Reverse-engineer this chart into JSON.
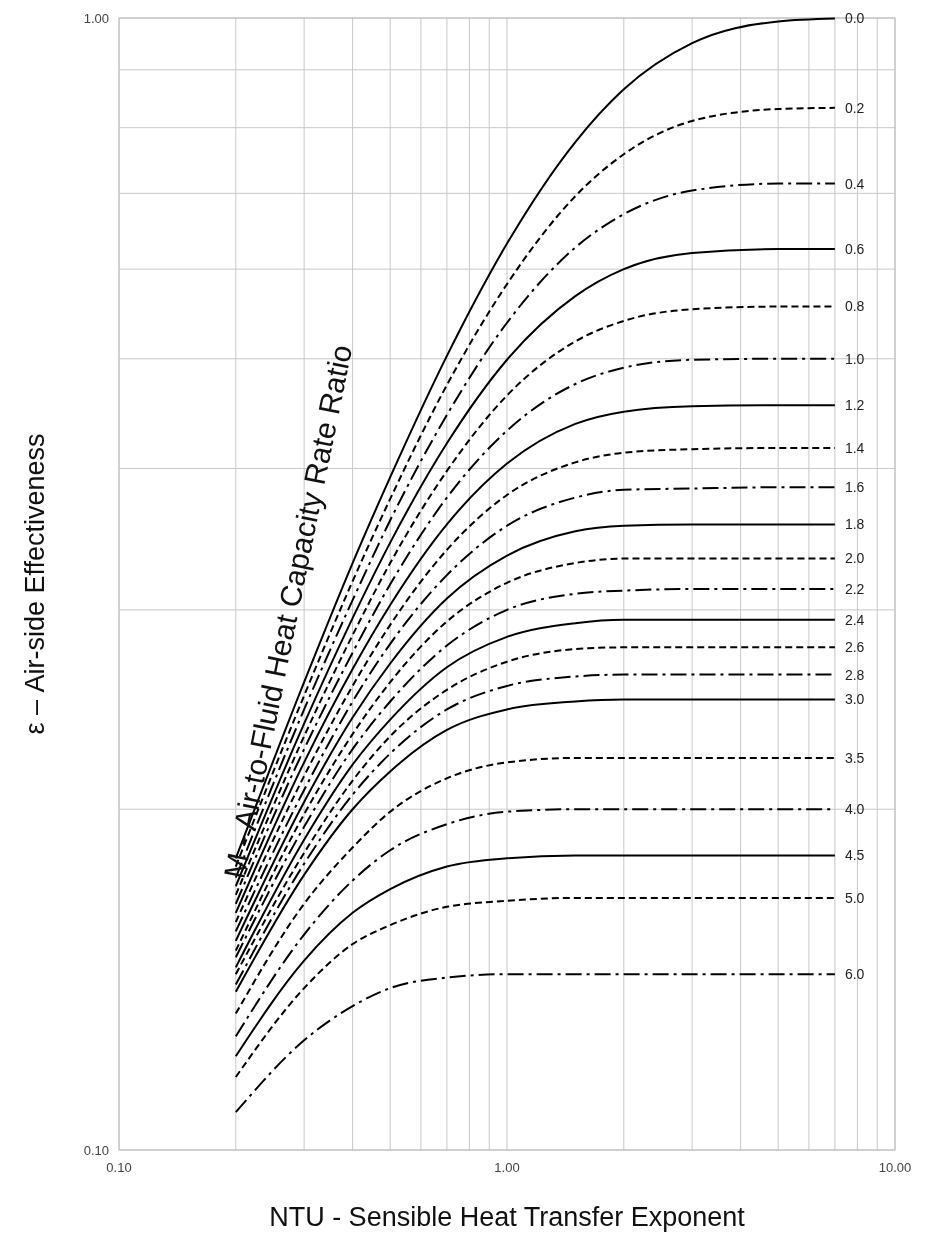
{
  "chart_data": {
    "type": "line",
    "xlabel": "NTU - Sensible Heat Transfer Exponent",
    "ylabel": "ε – Air-side Effectiveness",
    "log": "xy",
    "grid": true,
    "marker": "none",
    "xlim": [
      0.1,
      10
    ],
    "ylim": [
      0.1,
      1
    ],
    "xticks": [
      {
        "value": 0.1,
        "label": "0.10"
      },
      {
        "value": 0.2,
        "label": null
      },
      {
        "value": 0.3,
        "label": null
      },
      {
        "value": 0.4,
        "label": null
      },
      {
        "value": 0.5,
        "label": null
      },
      {
        "value": 0.6,
        "label": null
      },
      {
        "value": 0.7,
        "label": null
      },
      {
        "value": 0.8,
        "label": null
      },
      {
        "value": 0.9,
        "label": null
      },
      {
        "value": 1,
        "label": "1.00"
      },
      {
        "value": 2,
        "label": null
      },
      {
        "value": 3,
        "label": null
      },
      {
        "value": 4,
        "label": null
      },
      {
        "value": 5,
        "label": null
      },
      {
        "value": 6,
        "label": null
      },
      {
        "value": 7,
        "label": null
      },
      {
        "value": 8,
        "label": null
      },
      {
        "value": 9,
        "label": null
      },
      {
        "value": 10,
        "label": "10.00"
      }
    ],
    "yticks": [
      {
        "value": 0.1,
        "label": "0.10"
      },
      {
        "value": 0.2,
        "label": null
      },
      {
        "value": 0.3,
        "label": null
      },
      {
        "value": 0.4,
        "label": null
      },
      {
        "value": 0.5,
        "label": null
      },
      {
        "value": 0.6,
        "label": null
      },
      {
        "value": 0.7,
        "label": null
      },
      {
        "value": 0.8,
        "label": null
      },
      {
        "value": 0.9,
        "label": null
      },
      {
        "value": 1,
        "label": "1.00"
      }
    ],
    "x": [
      0.2,
      0.3,
      0.4,
      0.5,
      0.7,
      1.0,
      1.5,
      2,
      3,
      5,
      7
    ],
    "annotations": [
      "M - Air-to-Fluid Heat Capacity Rate Ratio"
    ],
    "series": [
      {
        "name": "0.0",
        "color": "#000000",
        "line_style": "solid",
        "values": [
          0.181,
          0.259,
          0.33,
          0.393,
          0.503,
          0.632,
          0.777,
          0.865,
          0.95,
          0.993,
          0.999
        ]
      },
      {
        "name": "0.2",
        "color": "#000000",
        "line_style": "dashed",
        "values": [
          0.178,
          0.252,
          0.318,
          0.376,
          0.474,
          0.582,
          0.696,
          0.758,
          0.811,
          0.831,
          0.833
        ]
      },
      {
        "name": "0.4",
        "color": "#000000",
        "line_style": "dashdot",
        "values": [
          0.174,
          0.245,
          0.306,
          0.36,
          0.446,
          0.538,
          0.627,
          0.671,
          0.704,
          0.714,
          0.714
        ]
      },
      {
        "name": "0.6",
        "color": "#000000",
        "line_style": "solid",
        "values": [
          0.171,
          0.238,
          0.295,
          0.344,
          0.421,
          0.499,
          0.568,
          0.6,
          0.62,
          0.625,
          0.625
        ]
      },
      {
        "name": "0.8",
        "color": "#000000",
        "line_style": "dashed",
        "values": [
          0.168,
          0.232,
          0.285,
          0.33,
          0.398,
          0.464,
          0.518,
          0.54,
          0.553,
          0.556,
          0.556
        ]
      },
      {
        "name": "1.0",
        "color": "#000000",
        "line_style": "dashdot",
        "values": [
          0.165,
          0.226,
          0.275,
          0.316,
          0.377,
          0.432,
          0.475,
          0.491,
          0.499,
          0.5,
          0.5
        ]
      },
      {
        "name": "1.2",
        "color": "#000000",
        "line_style": "solid",
        "values": [
          0.162,
          0.22,
          0.266,
          0.303,
          0.357,
          0.404,
          0.438,
          0.449,
          0.454,
          0.455,
          0.455
        ]
      },
      {
        "name": "1.4",
        "color": "#000000",
        "line_style": "dashed",
        "values": [
          0.159,
          0.214,
          0.257,
          0.291,
          0.339,
          0.379,
          0.405,
          0.413,
          0.416,
          0.417,
          0.417
        ]
      },
      {
        "name": "1.6",
        "color": "#000000",
        "line_style": "dashdot",
        "values": [
          0.156,
          0.208,
          0.249,
          0.28,
          0.322,
          0.356,
          0.377,
          0.383,
          0.384,
          0.385,
          0.385
        ]
      },
      {
        "name": "1.8",
        "color": "#000000",
        "line_style": "solid",
        "values": [
          0.153,
          0.203,
          0.241,
          0.269,
          0.307,
          0.335,
          0.352,
          0.356,
          0.357,
          0.357,
          0.357
        ]
      },
      {
        "name": "2.0",
        "color": "#000000",
        "line_style": "dashed",
        "values": [
          0.15,
          0.198,
          0.233,
          0.259,
          0.293,
          0.317,
          0.33,
          0.333,
          0.333,
          0.333,
          0.333
        ]
      },
      {
        "name": "2.2",
        "color": "#000000",
        "line_style": "dashdot",
        "values": [
          0.148,
          0.193,
          0.226,
          0.249,
          0.279,
          0.3,
          0.31,
          0.312,
          0.313,
          0.313,
          0.313
        ]
      },
      {
        "name": "2.4",
        "color": "#000000",
        "line_style": "solid",
        "values": [
          0.145,
          0.188,
          0.219,
          0.24,
          0.267,
          0.284,
          0.292,
          0.294,
          0.294,
          0.294,
          0.294
        ]
      },
      {
        "name": "2.6",
        "color": "#000000",
        "line_style": "dashed",
        "values": [
          0.143,
          0.183,
          0.212,
          0.232,
          0.255,
          0.27,
          0.277,
          0.278,
          0.278,
          0.278,
          0.278
        ]
      },
      {
        "name": "2.8",
        "color": "#000000",
        "line_style": "dashdot",
        "values": [
          0.14,
          0.179,
          0.206,
          0.224,
          0.245,
          0.257,
          0.262,
          0.263,
          0.263,
          0.263,
          0.263
        ]
      },
      {
        "name": "3.0",
        "color": "#000000",
        "line_style": "solid",
        "values": [
          0.138,
          0.175,
          0.2,
          0.216,
          0.235,
          0.245,
          0.249,
          0.25,
          0.25,
          0.25,
          0.25
        ]
      },
      {
        "name": "3.5",
        "color": "#000000",
        "line_style": "dashed",
        "values": [
          0.132,
          0.165,
          0.185,
          0.199,
          0.213,
          0.22,
          0.222,
          0.222,
          0.222,
          0.222,
          0.222
        ]
      },
      {
        "name": "4.0",
        "color": "#000000",
        "line_style": "dashdot",
        "values": [
          0.126,
          0.155,
          0.173,
          0.184,
          0.194,
          0.199,
          0.2,
          0.2,
          0.2,
          0.2,
          0.2
        ]
      },
      {
        "name": "4.5",
        "color": "#000000",
        "line_style": "solid",
        "values": [
          0.121,
          0.147,
          0.162,
          0.17,
          0.178,
          0.181,
          0.182,
          0.182,
          0.182,
          0.182,
          0.182
        ]
      },
      {
        "name": "5.0",
        "color": "#000000",
        "line_style": "dashed",
        "values": [
          0.116,
          0.139,
          0.152,
          0.158,
          0.164,
          0.166,
          0.167,
          0.167,
          0.167,
          0.167,
          0.167
        ]
      },
      {
        "name": "6.0",
        "color": "#000000",
        "line_style": "dashdot",
        "values": [
          0.108,
          0.125,
          0.134,
          0.139,
          0.142,
          0.143,
          0.143,
          0.143,
          0.143,
          0.143,
          0.143
        ]
      }
    ]
  }
}
